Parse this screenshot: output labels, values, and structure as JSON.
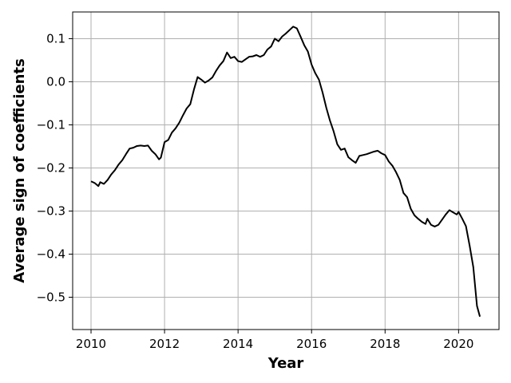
{
  "chart_data": {
    "type": "line",
    "title": "",
    "xlabel": "Year",
    "ylabel": "Average sign of coefficients",
    "xlim": [
      2009.5,
      2021.1
    ],
    "ylim": [
      -0.575,
      0.162
    ],
    "xticks": [
      2010,
      2012,
      2014,
      2016,
      2018,
      2020
    ],
    "xtick_labels": [
      "2010",
      "2012",
      "2014",
      "2016",
      "2018",
      "2020"
    ],
    "yticks": [
      0.1,
      0.0,
      -0.1,
      -0.2,
      -0.3,
      -0.4,
      -0.5
    ],
    "ytick_labels": [
      "0.1",
      "0.0",
      "−0.1",
      "−0.2",
      "−0.3",
      "−0.4",
      "−0.5"
    ],
    "grid": true,
    "series": [
      {
        "color": "#000000",
        "x": [
          2010.0,
          2010.1,
          2010.2,
          2010.25,
          2010.35,
          2010.45,
          2010.55,
          2010.65,
          2010.75,
          2010.85,
          2010.95,
          2011.05,
          2011.15,
          2011.25,
          2011.35,
          2011.45,
          2011.55,
          2011.65,
          2011.75,
          2011.85,
          2011.9,
          2012.0,
          2012.1,
          2012.2,
          2012.3,
          2012.4,
          2012.5,
          2012.6,
          2012.7,
          2012.8,
          2012.9,
          2013.0,
          2013.1,
          2013.2,
          2013.3,
          2013.4,
          2013.5,
          2013.6,
          2013.7,
          2013.8,
          2013.9,
          2014.0,
          2014.1,
          2014.2,
          2014.3,
          2014.4,
          2014.5,
          2014.6,
          2014.7,
          2014.8,
          2014.9,
          2015.0,
          2015.1,
          2015.2,
          2015.3,
          2015.4,
          2015.5,
          2015.6,
          2015.7,
          2015.8,
          2015.9,
          2016.0,
          2016.1,
          2016.2,
          2016.3,
          2016.4,
          2016.5,
          2016.6,
          2016.7,
          2016.8,
          2016.9,
          2017.0,
          2017.1,
          2017.2,
          2017.3,
          2017.4,
          2017.5,
          2017.6,
          2017.7,
          2017.8,
          2017.9,
          2018.0,
          2018.1,
          2018.2,
          2018.3,
          2018.4,
          2018.5,
          2018.6,
          2018.7,
          2018.8,
          2018.9,
          2019.0,
          2019.1,
          2019.15,
          2019.25,
          2019.35,
          2019.45,
          2019.55,
          2019.65,
          2019.75,
          2019.85,
          2019.95,
          2020.0,
          2020.1,
          2020.2,
          2020.3,
          2020.4,
          2020.5,
          2020.58
        ],
        "y": [
          -0.231,
          -0.235,
          -0.242,
          -0.233,
          -0.237,
          -0.228,
          -0.215,
          -0.205,
          -0.192,
          -0.182,
          -0.168,
          -0.155,
          -0.153,
          -0.149,
          -0.148,
          -0.149,
          -0.148,
          -0.16,
          -0.168,
          -0.18,
          -0.176,
          -0.14,
          -0.135,
          -0.118,
          -0.108,
          -0.095,
          -0.078,
          -0.062,
          -0.052,
          -0.018,
          0.011,
          0.005,
          -0.002,
          0.003,
          0.01,
          0.025,
          0.038,
          0.048,
          0.068,
          0.055,
          0.058,
          0.048,
          0.046,
          0.052,
          0.058,
          0.059,
          0.062,
          0.058,
          0.062,
          0.075,
          0.082,
          0.1,
          0.094,
          0.105,
          0.112,
          0.12,
          0.128,
          0.124,
          0.105,
          0.085,
          0.07,
          0.04,
          0.02,
          0.005,
          -0.025,
          -0.06,
          -0.09,
          -0.115,
          -0.145,
          -0.158,
          -0.155,
          -0.175,
          -0.182,
          -0.188,
          -0.172,
          -0.17,
          -0.168,
          -0.165,
          -0.162,
          -0.16,
          -0.166,
          -0.17,
          -0.185,
          -0.195,
          -0.21,
          -0.228,
          -0.258,
          -0.268,
          -0.295,
          -0.31,
          -0.318,
          -0.325,
          -0.33,
          -0.318,
          -0.332,
          -0.336,
          -0.332,
          -0.32,
          -0.308,
          -0.298,
          -0.303,
          -0.308,
          -0.302,
          -0.318,
          -0.335,
          -0.38,
          -0.43,
          -0.52,
          -0.545
        ]
      }
    ]
  }
}
